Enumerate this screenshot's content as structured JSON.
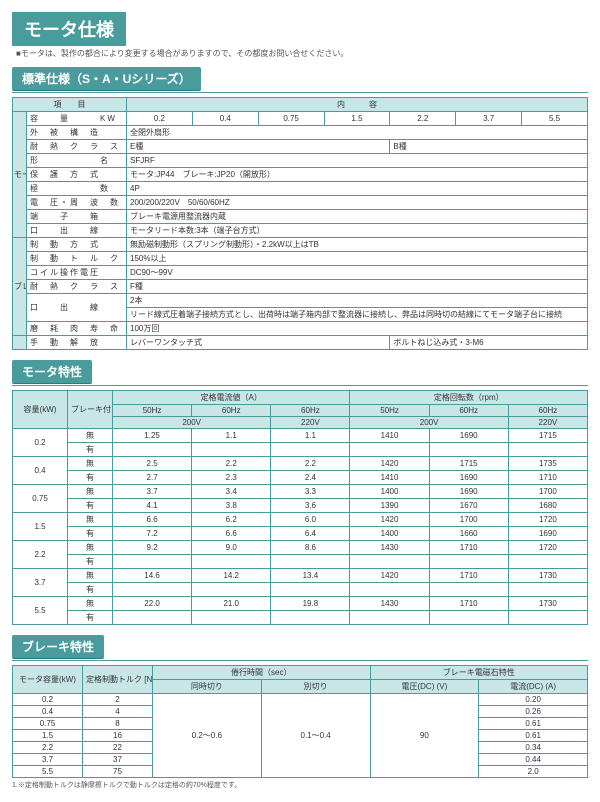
{
  "title": "モータ仕様",
  "title_note": "■モータは、製作の都合により変更する場合がありますので、その都度お問い合せください。",
  "sec1": {
    "head": "標準仕様（S・A・Uシリーズ）",
    "top_hdr": {
      "item": "項　　目",
      "content": "内　　　容"
    },
    "rows": {
      "kw_label": "容　　量　　　KW",
      "kw": [
        "0.2",
        "0.4",
        "0.75",
        "1.5",
        "2.2",
        "3.7",
        "5.5"
      ],
      "frame": "外　被　構　造",
      "frame_v": "全閉外扇形",
      "ins": "耐　熱　ク　ラ　ス",
      "ins_l": "E種",
      "ins_r": "B種",
      "type": "形　　　　　　名",
      "type_v": "SFJRF",
      "prot": "保　護　方　式",
      "prot_v": "モータ:JP44　ブレーキ:JP20（開放形）",
      "pole": "極　　　　　　数",
      "pole_v": "4P",
      "volt": "電　圧・周　波　数",
      "volt_v": "200/200/220V　50/60/60HZ",
      "term": "端　　子　　箱",
      "term_v": "ブレーキ電源用整流器内蔵",
      "lead": "口　　出　　線",
      "lead_v": "モータリード本数:3本（端子台方式）",
      "brk_m": "制　動　方　式",
      "brk_m_v": "無励磁制動形（スプリング制動形）・2.2kW以上はTB",
      "brk_t": "制　動　ト　ル　ク",
      "brk_t_v": "150%以上",
      "coil": "コイル操作電圧",
      "coil_v": "DC90～99V",
      "bins": "耐　熱　ク　ラ　ス",
      "bins_v": "F種",
      "blead": "口　　出　　線",
      "blead_v": "2本",
      "blead_v2": "リード線式圧着端子接続方式とし、出荷時は端子箱内部で整流器に接続し、弊品は同時切の結線にてモータ端子台に接続",
      "life": "磨　耗　肉　寿　命",
      "life_v": "100万回",
      "rel": "手　動　解　放",
      "rel_v": "レバーワンタッチ式",
      "rel_v2": "ボルトねじ込み式・3-M6"
    },
    "side": {
      "motor": "モータ",
      "brake": "ブレーキ"
    }
  },
  "sec2": {
    "head": "モータ特性",
    "h": {
      "cap": "容量(kW)",
      "bk": "ブレーキ付・無",
      "amp": "定格電流値（A）",
      "rpm": "定格回転数（rpm）",
      "a50": "50Hz",
      "a60a": "60Hz",
      "a60b": "60Hz",
      "a200": "200V",
      "a220": "220V"
    },
    "rows": [
      {
        "c": "0.2",
        "t": [
          "無",
          "有"
        ],
        "v": [
          [
            "1.25",
            "1.1",
            "1.1",
            "1410",
            "1690",
            "1715"
          ],
          [
            "",
            "",
            "",
            "",
            "",
            ""
          ]
        ]
      },
      {
        "c": "0.4",
        "t": [
          "無",
          "有"
        ],
        "v": [
          [
            "2.5",
            "2.2",
            "2.2",
            "1420",
            "1715",
            "1735"
          ],
          [
            "2.7",
            "2.3",
            "2.4",
            "1410",
            "1690",
            "1710"
          ]
        ]
      },
      {
        "c": "0.75",
        "t": [
          "無",
          "有"
        ],
        "v": [
          [
            "3.7",
            "3.4",
            "3.3",
            "1400",
            "1690",
            "1700"
          ],
          [
            "4.1",
            "3.8",
            "3.6",
            "1390",
            "1670",
            "1680"
          ]
        ]
      },
      {
        "c": "1.5",
        "t": [
          "無",
          "有"
        ],
        "v": [
          [
            "6.6",
            "6.2",
            "6.0",
            "1420",
            "1700",
            "1720"
          ],
          [
            "7.2",
            "6.6",
            "6.4",
            "1400",
            "1660",
            "1690"
          ]
        ]
      },
      {
        "c": "2.2",
        "t": [
          "無",
          "有"
        ],
        "v": [
          [
            "9.2",
            "9.0",
            "8.6",
            "1430",
            "1710",
            "1720"
          ],
          [
            "",
            "",
            "",
            "",
            "",
            ""
          ]
        ]
      },
      {
        "c": "3.7",
        "t": [
          "無",
          "有"
        ],
        "v": [
          [
            "14.6",
            "14.2",
            "13.4",
            "1420",
            "1710",
            "1730"
          ],
          [
            "",
            "",
            "",
            "",
            "",
            ""
          ]
        ]
      },
      {
        "c": "5.5",
        "t": [
          "無",
          "有"
        ],
        "v": [
          [
            "22.0",
            "21.0",
            "19.8",
            "1430",
            "1710",
            "1730"
          ],
          [
            "",
            "",
            "",
            "",
            "",
            ""
          ]
        ]
      }
    ]
  },
  "sec3": {
    "head": "ブレーキ特性",
    "h": {
      "cap": "モータ容量(kW)",
      "tq": "定格制動トルク [N・m]",
      "time": "倦行時間（sec）",
      "mag": "ブレーキ電磁石特性",
      "sim": "同時切り",
      "sep": "別切り",
      "dcv": "電圧(DC) (V)",
      "dca": "電流(DC) (A)"
    },
    "rows": [
      [
        "0.2",
        "2",
        "",
        "",
        "",
        "0.20"
      ],
      [
        "0.4",
        "4",
        "",
        "",
        "",
        "0.26"
      ],
      [
        "0.75",
        "8",
        "",
        "",
        "",
        "0.61"
      ],
      [
        "1.5",
        "16",
        "0.2～0.6",
        "0.1～0.4",
        "90",
        "0.61"
      ],
      [
        "2.2",
        "22",
        "",
        "",
        "",
        "0.34"
      ],
      [
        "3.7",
        "37",
        "",
        "",
        "",
        "0.44"
      ],
      [
        "5.5",
        "75",
        "",
        "",
        "",
        "2.0"
      ]
    ],
    "note": "1.※定格制動トルクは静摩擦トルクで動トルクは定格の約70%程度です。"
  }
}
